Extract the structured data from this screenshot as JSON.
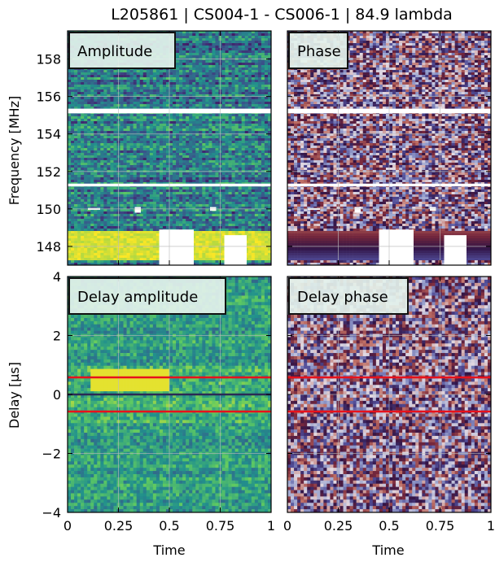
{
  "title": "L205861 | CS004-1 - CS006-1 | 84.9 lambda",
  "colors": {
    "red_line": "#e8111b",
    "dark_line": "#2a2a55",
    "label_bg": "#e4f2ec"
  },
  "chart_data": [
    {
      "type": "heatmap",
      "panel": "amplitude",
      "label": "Amplitude",
      "ylabel": "Frequency [MHz]",
      "xlabel": "",
      "xlim": [
        0,
        1
      ],
      "ylim": [
        147,
        159.5
      ],
      "yticks": [
        148,
        150,
        152,
        154,
        156,
        158
      ],
      "ytick_labels": [
        "148",
        "150",
        "152",
        "154",
        "156",
        "158"
      ],
      "colormap": "viridis",
      "grid": true
    },
    {
      "type": "heatmap",
      "panel": "phase",
      "label": "Phase",
      "xlim": [
        0,
        1
      ],
      "ylim": [
        147,
        159.5
      ],
      "colormap": "twilight",
      "grid": true
    },
    {
      "type": "heatmap",
      "panel": "delay-amplitude",
      "label": "Delay amplitude",
      "ylabel": "Delay [μs]",
      "xlabel": "Time",
      "xlim": [
        0,
        1
      ],
      "ylim": [
        -4,
        4
      ],
      "xticks": [
        0,
        0.25,
        0.5,
        0.75,
        1
      ],
      "xtick_labels": [
        "0",
        "0.25",
        "0.5",
        "0.75",
        "1"
      ],
      "yticks": [
        -4,
        -2,
        0,
        2,
        4
      ],
      "ytick_labels": [
        "−4",
        "−2",
        "0",
        "2",
        "4"
      ],
      "colormap": "viridis",
      "grid": true,
      "hlines": [
        {
          "y": 0.58,
          "color": "red"
        },
        {
          "y": -0.58,
          "color": "red"
        },
        {
          "y": 0,
          "color": "dark"
        }
      ]
    },
    {
      "type": "heatmap",
      "panel": "delay-phase",
      "label": "Delay phase",
      "xlabel": "Time",
      "xlim": [
        0,
        1
      ],
      "ylim": [
        -4,
        4
      ],
      "xticks": [
        0,
        0.25,
        0.5,
        0.75,
        1
      ],
      "xtick_labels": [
        "0",
        "0.25",
        "0.5",
        "0.75",
        "1"
      ],
      "colormap": "twilight",
      "grid": true,
      "hlines": [
        {
          "y": 0.58,
          "color": "red"
        },
        {
          "y": -0.58,
          "color": "red"
        }
      ]
    }
  ]
}
